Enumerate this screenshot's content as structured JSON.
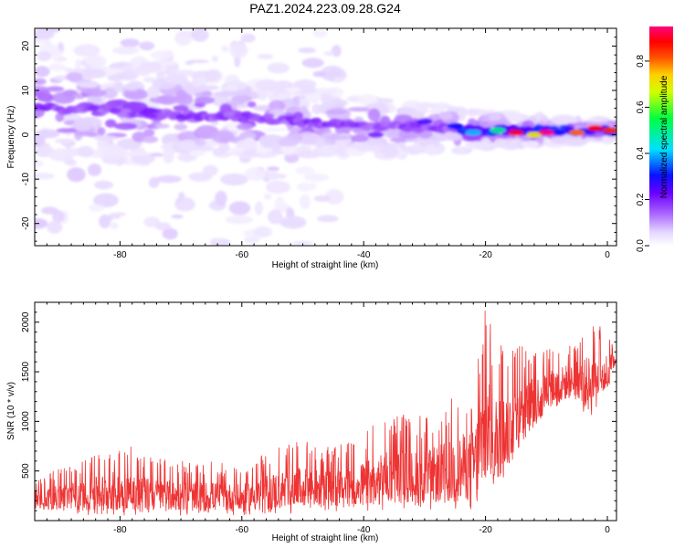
{
  "figure_title": "PAZ1.2024.223.09.28.G24",
  "chart_data": [
    {
      "type": "heatmap",
      "title": "PAZ1.2024.223.09.28.G24",
      "xlabel": "Height of straight line (km)",
      "ylabel": "Frequency (Hz)",
      "xlim": [
        -94,
        1.5
      ],
      "ylim": [
        -25,
        24
      ],
      "x_ticks": [
        -80,
        -60,
        -40,
        -20,
        0
      ],
      "y_ticks": [
        -20,
        -10,
        0,
        10,
        20
      ],
      "colorbar": {
        "label": "Normalized spectral amplitude",
        "range": [
          0,
          0.95
        ],
        "ticks": [
          0.0,
          0.2,
          0.4,
          0.6,
          0.8
        ],
        "colormap": "white-lavender-purple-blue-cyan-green-yellow-orange-red-magenta"
      },
      "ridge": {
        "description_points": [
          {
            "x": -92,
            "freq": 6
          },
          {
            "x": -80,
            "freq": 5
          },
          {
            "x": -60,
            "freq": 4
          },
          {
            "x": -40,
            "freq": 2
          },
          {
            "x": -20,
            "freq": 1
          },
          {
            "x": 0,
            "freq": 1
          }
        ]
      },
      "features": [
        {
          "x": -82,
          "freq": 6.5,
          "amp": 0.15
        },
        {
          "x": -75,
          "freq": 5.5,
          "amp": 0.2
        },
        {
          "x": -70,
          "freq": 6,
          "amp": 0.15
        },
        {
          "x": -55,
          "freq": 3,
          "amp": 0.15
        },
        {
          "x": -38,
          "freq": 0,
          "amp": 0.2
        },
        {
          "x": -30,
          "freq": 3,
          "amp": 0.25
        },
        {
          "x": -25,
          "freq": 2,
          "amp": 0.3
        },
        {
          "x": -22,
          "freq": 0.5,
          "amp": 0.4
        },
        {
          "x": -18,
          "freq": 1,
          "amp": 0.5
        },
        {
          "x": -15,
          "freq": 0.5,
          "amp": 0.9
        },
        {
          "x": -12,
          "freq": 0,
          "amp": 0.7
        },
        {
          "x": -10,
          "freq": 0.5,
          "amp": 0.95
        },
        {
          "x": -5,
          "freq": 0.5,
          "amp": 0.8
        },
        {
          "x": -2,
          "freq": 1.5,
          "amp": 0.9
        },
        {
          "x": 0.5,
          "freq": 1,
          "amp": 0.85
        }
      ]
    },
    {
      "type": "line",
      "xlabel": "Height of straight line (km)",
      "ylabel": "SNR (10 * v/v)",
      "xlim": [
        -94,
        1.5
      ],
      "ylim": [
        0,
        2200
      ],
      "x_ticks": [
        -80,
        -60,
        -40,
        -20,
        0
      ],
      "y_ticks": [
        500,
        1000,
        1500,
        2000
      ],
      "series": [
        {
          "color": "#ee3333",
          "envelope": [
            {
              "x": -93,
              "low": 100,
              "high": 450
            },
            {
              "x": -85,
              "low": 50,
              "high": 650
            },
            {
              "x": -80,
              "low": 50,
              "high": 800
            },
            {
              "x": -75,
              "low": 50,
              "high": 650
            },
            {
              "x": -70,
              "low": 50,
              "high": 600
            },
            {
              "x": -65,
              "low": 50,
              "high": 600
            },
            {
              "x": -60,
              "low": 50,
              "high": 550
            },
            {
              "x": -55,
              "low": 50,
              "high": 750
            },
            {
              "x": -50,
              "low": 80,
              "high": 800
            },
            {
              "x": -45,
              "low": 80,
              "high": 750
            },
            {
              "x": -40,
              "low": 80,
              "high": 900
            },
            {
              "x": -35,
              "low": 100,
              "high": 1100
            },
            {
              "x": -30,
              "low": 100,
              "high": 1050
            },
            {
              "x": -25,
              "low": 100,
              "high": 1300
            },
            {
              "x": -22,
              "low": 100,
              "high": 1400
            },
            {
              "x": -20,
              "low": 200,
              "high": 2200
            },
            {
              "x": -18,
              "low": 300,
              "high": 1800
            },
            {
              "x": -15,
              "low": 600,
              "high": 1800
            },
            {
              "x": -10,
              "low": 1100,
              "high": 1750
            },
            {
              "x": -5,
              "low": 1200,
              "high": 1850
            },
            {
              "x": -3,
              "low": 1000,
              "high": 2050
            },
            {
              "x": 0,
              "low": 1300,
              "high": 1900
            },
            {
              "x": 1.5,
              "low": 1600,
              "high": 1750
            }
          ]
        }
      ]
    }
  ]
}
